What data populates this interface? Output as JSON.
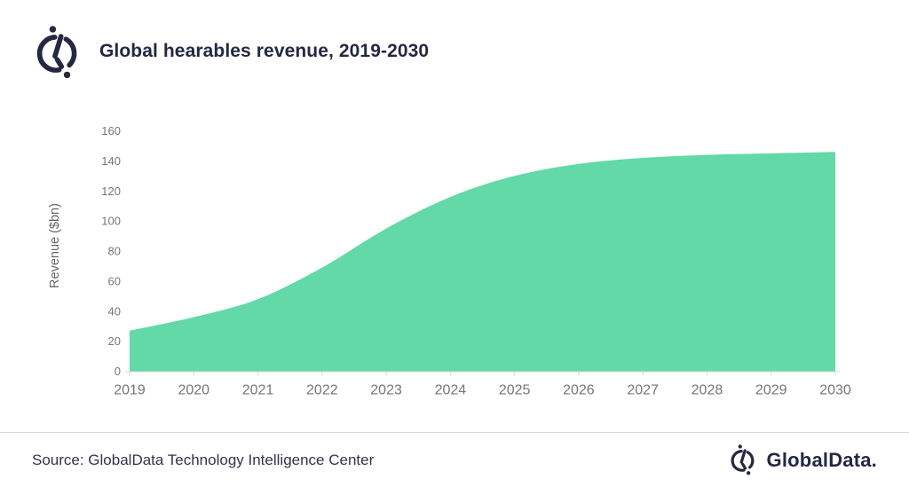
{
  "header": {
    "title": "Global hearables revenue, 2019-2030"
  },
  "footer": {
    "source": "Source: GlobalData Technology Intelligence Center",
    "brand": "GlobalData."
  },
  "colors": {
    "brand_navy": "#262742",
    "area_green": "#62d9a6",
    "axis_text": "#767676",
    "axis_title_text": "#666666",
    "axis_line": "#d6d6d6",
    "divider": "#d9d9d9"
  },
  "chart_data": {
    "type": "area",
    "title": "Global hearables revenue, 2019-2030",
    "categories": [
      "2019",
      "2020",
      "2021",
      "2022",
      "2023",
      "2024",
      "2025",
      "2026",
      "2027",
      "2028",
      "2029",
      "2030"
    ],
    "values": [
      27,
      36,
      48,
      69,
      95,
      116,
      130,
      138,
      142,
      144,
      145,
      146
    ],
    "xlabel": "",
    "ylabel": "Revenue  ($bn)",
    "ylim": [
      0,
      160
    ],
    "ytick_step": 20,
    "grid": false,
    "legend": "none",
    "smooth": true,
    "area_color": "#62d9a6"
  }
}
